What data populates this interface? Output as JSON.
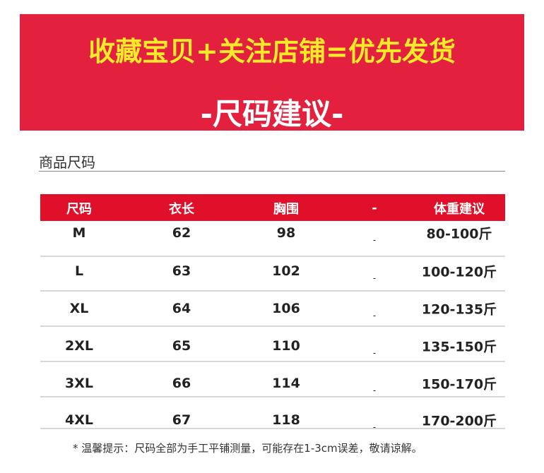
{
  "banner": {
    "title": "收藏宝贝+关注店铺=优先发货",
    "subtitle": "-尺码建议-"
  },
  "section": {
    "title": "商品尺码"
  },
  "table": {
    "header": [
      "尺码",
      "衣长",
      "胸围",
      "-",
      "体重建议"
    ],
    "rows": [
      [
        "M",
        "62",
        "98",
        "-",
        "80-100斤"
      ],
      [
        "L",
        "63",
        "102",
        "-",
        "100-120斤"
      ],
      [
        "XL",
        "64",
        "106",
        "-",
        "120-135斤"
      ],
      [
        "2XL",
        "65",
        "110",
        "-",
        "135-150斤"
      ],
      [
        "3XL",
        "66",
        "114",
        "-",
        "150-170斤"
      ],
      [
        "4XL",
        "67",
        "118",
        "-",
        "170-200斤"
      ]
    ]
  },
  "footnote": "* 温馨提示：尺码全部为手工平铺测量，可能存在1-3cm误差，敬请谅解。"
}
